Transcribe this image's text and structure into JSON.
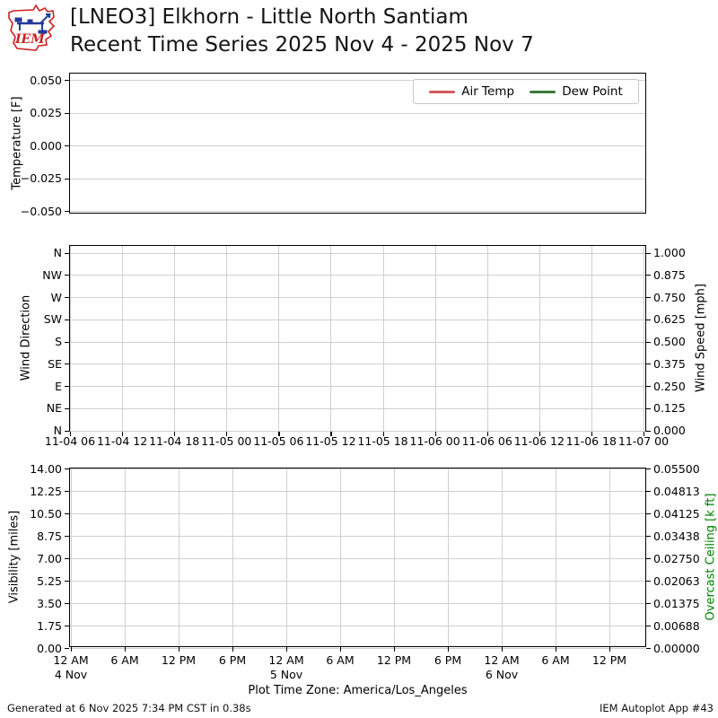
{
  "header": {
    "logo_text": "IEM",
    "title_line1": "[LNEO3] Elkhorn - Little North Santiam",
    "title_line2": "Recent Time Series 2025 Nov 4 - 2025 Nov 7"
  },
  "colors": {
    "air_temp": "#d4595e",
    "dew_point": "#3a7a3a",
    "grid": "#cfcfcf",
    "spine": "#000000",
    "overcast_ceiling_label": "#008000",
    "logo_red": "#cc2222",
    "logo_blue": "#223a99"
  },
  "chart_data": [
    {
      "type": "line",
      "panel": "temperature",
      "ylabel": "Temperature [F]",
      "yticks": [
        "0.050",
        "0.025",
        "0.000",
        "−0.025",
        "−0.050"
      ],
      "ylim": [
        -0.055,
        0.055
      ],
      "grid": "horizontal",
      "legend_position": "upper right",
      "series": [
        {
          "name": "Air Temp",
          "color": "#d4595e",
          "x": [],
          "values": []
        },
        {
          "name": "Dew Point",
          "color": "#3a7a3a",
          "x": [],
          "values": []
        }
      ],
      "note": "no data plotted"
    },
    {
      "type": "line",
      "panel": "wind",
      "ylabel_left": "Wind Direction",
      "ylabel_right": "Wind Speed [mph]",
      "yticks_left": [
        "N",
        "NW",
        "W",
        "SW",
        "S",
        "SE",
        "E",
        "NE",
        "N"
      ],
      "yticks_right": [
        "1.000",
        "0.875",
        "0.750",
        "0.625",
        "0.500",
        "0.375",
        "0.250",
        "0.125",
        "0.000"
      ],
      "ylim_right": [
        0.0,
        1.0
      ],
      "xticks": [
        "11-04 06",
        "11-04 12",
        "11-04 18",
        "11-05 00",
        "11-05 06",
        "11-05 12",
        "11-05 18",
        "11-06 00",
        "11-06 06",
        "11-06 12",
        "11-06 18",
        "11-07 00"
      ],
      "grid": "both",
      "series": []
    },
    {
      "type": "line",
      "panel": "visibility",
      "ylabel_left": "Visibility [miles]",
      "ylabel_right": "Overcast Ceiling [k ft]",
      "yticks_left": [
        "14.00",
        "12.25",
        "10.50",
        "8.75",
        "7.00",
        "5.25",
        "3.50",
        "1.75",
        "0.00"
      ],
      "ylim_left": [
        0,
        14
      ],
      "yticks_right": [
        "0.05500",
        "0.04813",
        "0.04125",
        "0.03438",
        "0.02750",
        "0.02063",
        "0.01375",
        "0.00688",
        "0.00000"
      ],
      "ylim_right": [
        0,
        0.055
      ],
      "xticks": [
        "12 AM",
        "6 AM",
        "12 PM",
        "6 PM",
        "12 AM",
        "6 AM",
        "12 PM",
        "6 PM",
        "12 AM",
        "6 AM",
        "12 PM"
      ],
      "xtick_dates": [
        {
          "tick": 0,
          "label": "4 Nov"
        },
        {
          "tick": 4,
          "label": "5 Nov"
        },
        {
          "tick": 8,
          "label": "6 Nov"
        }
      ],
      "xlabel": "Plot Time Zone: America/Los_Angeles",
      "grid": "both",
      "series": []
    }
  ],
  "footer": {
    "generated": "Generated at 6 Nov 2025 7:34 PM CST in 0.38s",
    "app": "IEM Autoplot App #43"
  }
}
